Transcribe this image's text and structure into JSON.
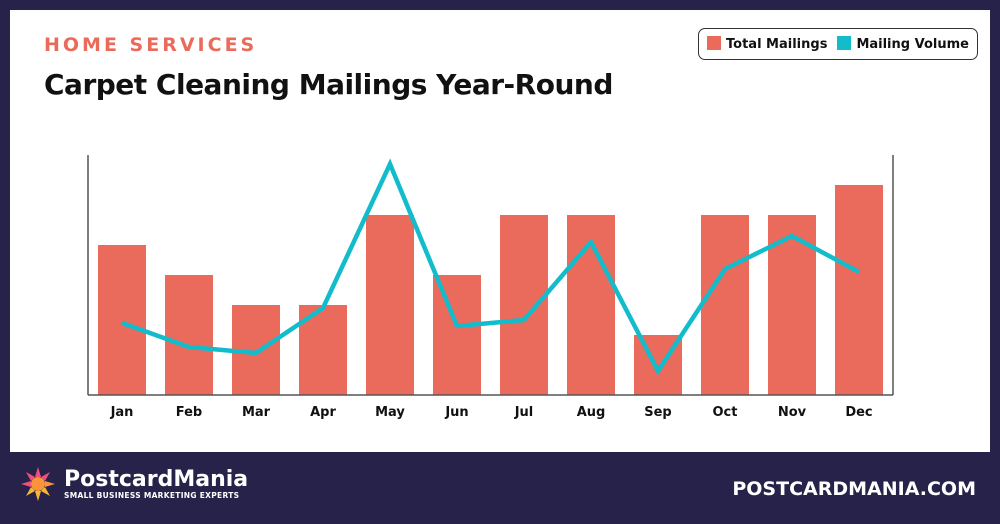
{
  "eyebrow": "HOME SERVICES",
  "title": "Carpet Cleaning Mailings Year-Round",
  "footer": {
    "brand": "PostcardMania",
    "tagline": "SMALL BUSINESS MARKETING EXPERTS",
    "url": "POSTCARDMANIA.COM"
  },
  "colors": {
    "bars": "#ea6b5b",
    "line": "#12bccb",
    "background": "#27224a"
  },
  "chart_data": {
    "type": "bar",
    "title": "Carpet Cleaning Mailings Year-Round",
    "categories": [
      "Jan",
      "Feb",
      "Mar",
      "Apr",
      "May",
      "Jun",
      "Jul",
      "Aug",
      "Sep",
      "Oct",
      "Nov",
      "Dec"
    ],
    "series": [
      {
        "name": "Total Mailings",
        "type": "bar",
        "values": [
          5,
          4,
          3,
          3,
          6,
          4,
          6,
          6,
          2,
          6,
          6,
          7
        ]
      },
      {
        "name": "Mailing Volume",
        "type": "line",
        "values": [
          2.4,
          1.6,
          1.4,
          2.9,
          7.7,
          2.3,
          2.5,
          5.1,
          0.8,
          4.2,
          5.3,
          4.1
        ]
      }
    ],
    "ylim": [
      0,
      8
    ],
    "grid": false,
    "legend": "top-right",
    "xlabel": "",
    "ylabel": ""
  }
}
